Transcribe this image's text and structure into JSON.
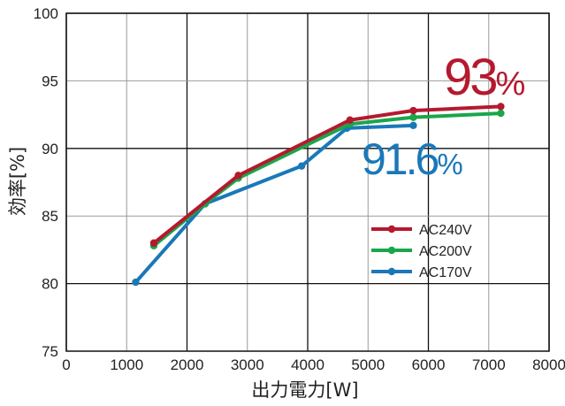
{
  "chart_data": {
    "type": "line",
    "xlabel": "出力電力[W]",
    "ylabel": "効率[%]",
    "xlim": [
      0,
      8000
    ],
    "ylim": [
      75,
      100
    ],
    "x_ticks": [
      "0",
      "1000",
      "2000",
      "3000",
      "4000",
      "5000",
      "6000",
      "7000",
      "8000"
    ],
    "y_ticks": [
      "75",
      "80",
      "85",
      "90",
      "95",
      "100"
    ],
    "grid": true,
    "legend_position": "right",
    "series": [
      {
        "name": "AC240V",
        "color": "#b5192e",
        "x": [
          1450,
          2850,
          4700,
          5750,
          7200
        ],
        "y": [
          83.0,
          88.0,
          92.1,
          92.8,
          93.1
        ]
      },
      {
        "name": "AC200V",
        "color": "#1aa64a",
        "x": [
          1450,
          2300,
          2850,
          4700,
          5750,
          7200
        ],
        "y": [
          82.8,
          85.9,
          87.8,
          91.8,
          92.3,
          92.6
        ]
      },
      {
        "name": "AC170V",
        "color": "#1a78b8",
        "x": [
          1150,
          2300,
          3900,
          4650,
          5750
        ],
        "y": [
          80.1,
          85.9,
          88.7,
          91.5,
          91.7
        ]
      }
    ],
    "annotations": [
      {
        "main": "93",
        "unit": "%",
        "color": "#b5192e"
      },
      {
        "main": "91.6",
        "unit": "%",
        "color": "#1a78b8"
      }
    ]
  }
}
